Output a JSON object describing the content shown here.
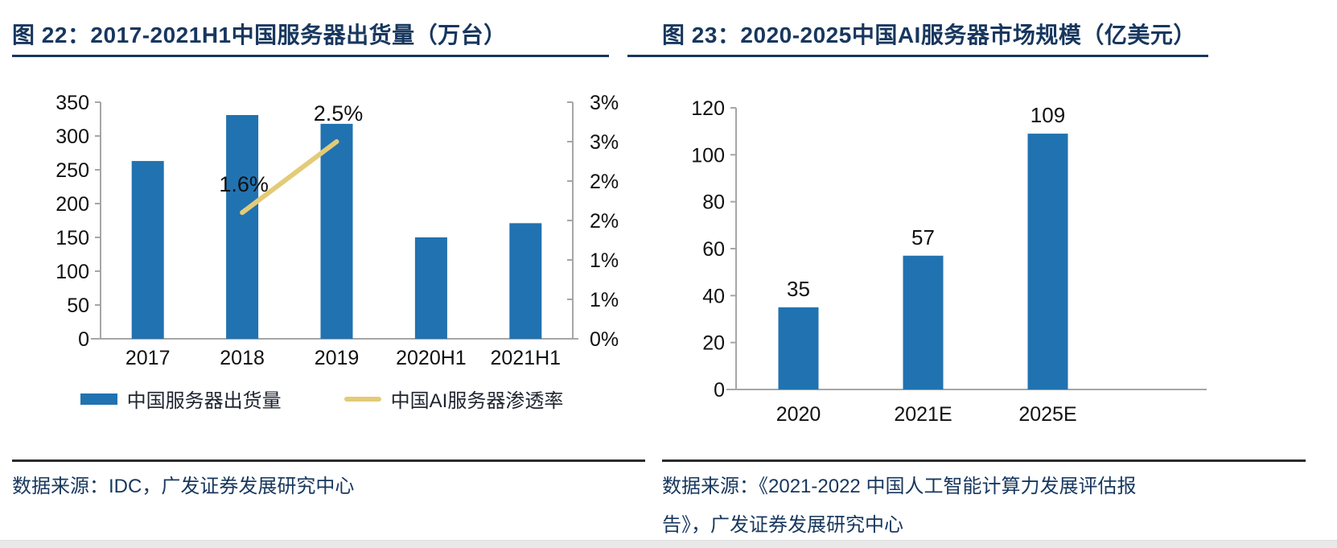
{
  "colors": {
    "title_navy": "#17375e",
    "bar_blue": "#2172b0",
    "line_yellow": "#e3cb77",
    "axis_gray": "#a6a6a6",
    "label_black": "#111111",
    "separator_dark": "#2a2a2a",
    "bottom_band_gray": "#e9e9e9"
  },
  "left_panel": {
    "title": "图 22：2017-2021H1中国服务器出货量（万台）",
    "source": "数据来源：IDC，广发证券发展研究中心",
    "legend": [
      {
        "type": "bar",
        "label": "中国服务器出货量",
        "color": "#2172b0"
      },
      {
        "type": "line",
        "label": "中国AI服务器渗透率",
        "color": "#e3cb77"
      }
    ]
  },
  "right_panel": {
    "title": "图 23：2020-2025中国AI服务器市场规模（亿美元）",
    "source_line1": "数据来源：《2021-2022 中国人工智能计算力发展评估报",
    "source_line2": "告》，广发证券发展研究中心"
  },
  "chart_data": [
    {
      "id": "china-server-shipments",
      "type": "bar",
      "subtype": "combo-bar-line-dual-axis",
      "title": "2017-2021H1中国服务器出货量（万台）",
      "categories": [
        "2017",
        "2018",
        "2019",
        "2020H1",
        "2021H1"
      ],
      "series": [
        {
          "name": "中国服务器出货量",
          "type": "bar",
          "axis": "left",
          "values": [
            263,
            331,
            318,
            150,
            171
          ]
        },
        {
          "name": "中国AI服务器渗透率",
          "type": "line",
          "axis": "right",
          "values": [
            null,
            1.6,
            2.5,
            null,
            null
          ],
          "point_labels": [
            null,
            "1.6%",
            "2.5%",
            null,
            null
          ]
        }
      ],
      "left_axis": {
        "min": 0,
        "max": 350,
        "step": 50,
        "labels": [
          "0",
          "50",
          "100",
          "150",
          "200",
          "250",
          "300",
          "350"
        ]
      },
      "right_axis": {
        "min": 0,
        "max": 3,
        "step": 0.5,
        "labels": [
          "0%",
          "1%",
          "1%",
          "2%",
          "2%",
          "3%",
          "3%"
        ]
      },
      "grid": false,
      "legend_position": "bottom"
    },
    {
      "id": "china-ai-server-market",
      "type": "bar",
      "title": "2020-2025中国AI服务器市场规模（亿美元）",
      "categories": [
        "2020",
        "2021E",
        "2025E"
      ],
      "values": [
        35,
        57,
        109
      ],
      "bar_labels": [
        "35",
        "57",
        "109"
      ],
      "left_axis": {
        "min": 0,
        "max": 120,
        "step": 20,
        "labels": [
          "0",
          "20",
          "40",
          "60",
          "80",
          "100",
          "120"
        ]
      },
      "grid": false,
      "legend_position": "none"
    }
  ]
}
